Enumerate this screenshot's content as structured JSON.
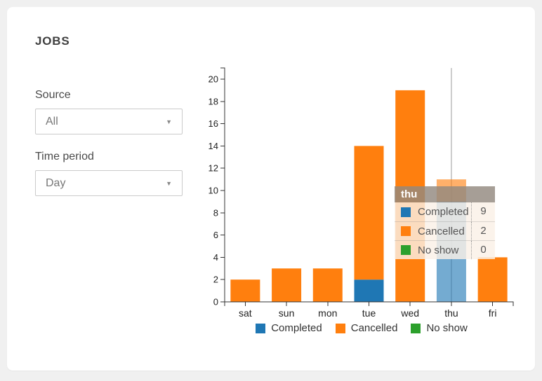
{
  "panel": {
    "title": "JOBS"
  },
  "filters": {
    "source_label": "Source",
    "source_value": "All",
    "time_period_label": "Time period",
    "time_period_value": "Day"
  },
  "chart_data": {
    "type": "bar",
    "stacked": true,
    "title": "",
    "xlabel": "",
    "ylabel": "",
    "categories": [
      "sat",
      "sun",
      "mon",
      "tue",
      "wed",
      "thu",
      "fri"
    ],
    "series": [
      {
        "name": "Completed",
        "color": "#1f77b4",
        "values": [
          0,
          0,
          0,
          2,
          0,
          9,
          0
        ]
      },
      {
        "name": "Cancelled",
        "color": "#ff7f0e",
        "values": [
          2,
          3,
          3,
          12,
          19,
          2,
          4
        ]
      },
      {
        "name": "No show",
        "color": "#2ca02c",
        "values": [
          0,
          0,
          0,
          0,
          0,
          0,
          0
        ]
      }
    ],
    "totals": {
      "sat": 2,
      "sun": 3,
      "mon": 3,
      "tue": 14,
      "wed": 19,
      "thu": 11,
      "fri": 4
    },
    "ylim": [
      0,
      21
    ],
    "ytick_step": 2,
    "ytick_max": 20,
    "grid": false,
    "legend_position": "bottom",
    "highlighted_category": "thu"
  },
  "tooltip": {
    "title": "thu",
    "rows": [
      {
        "label": "Completed",
        "value": "9",
        "color": "#1f77b4"
      },
      {
        "label": "Cancelled",
        "value": "2",
        "color": "#ff7f0e"
      },
      {
        "label": "No show",
        "value": "0",
        "color": "#2ca02c"
      }
    ]
  },
  "colors": {
    "axis": "#333333",
    "tick_label": "#222222",
    "crosshair": "#9b9b9b",
    "card_bg": "#ffffff",
    "page_bg": "#f0f0f0"
  }
}
